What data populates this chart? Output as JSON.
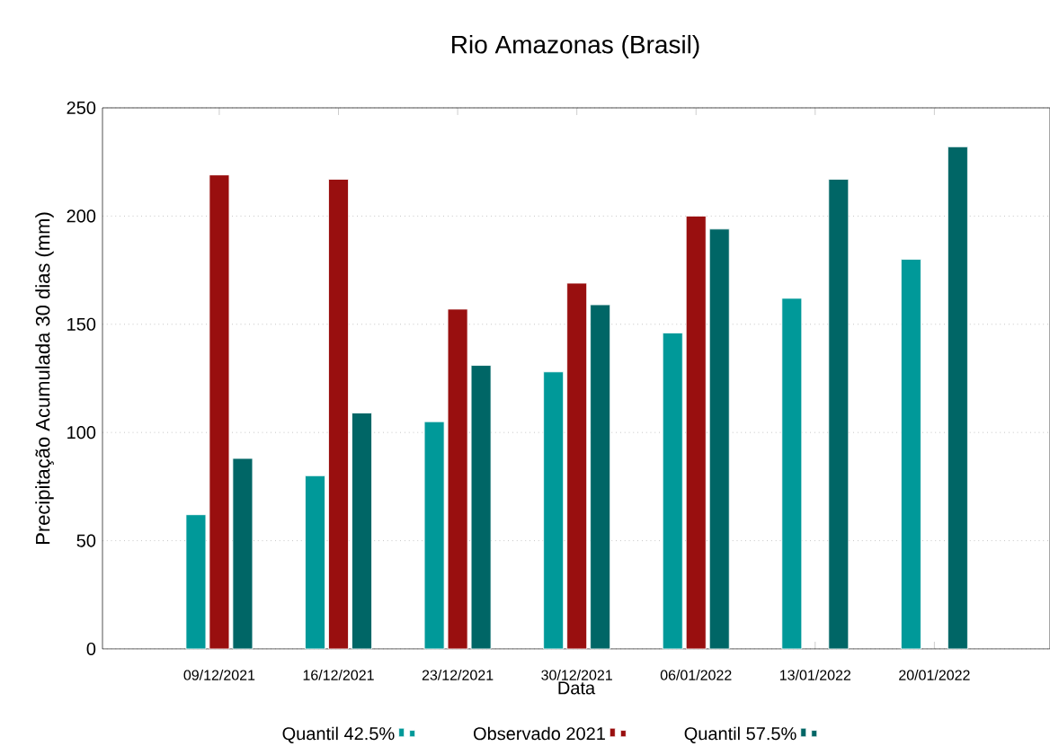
{
  "chart_data": {
    "type": "bar",
    "title": "Rio Amazonas (Brasil)",
    "xlabel": "Data",
    "ylabel": "Precipitação Acumulada 30 dias (mm)",
    "categories": [
      "09/12/2021",
      "16/12/2021",
      "23/12/2021",
      "30/12/2021",
      "06/01/2022",
      "13/01/2022",
      "20/01/2022"
    ],
    "series": [
      {
        "name": "Quantil 42.5%",
        "color": "#009999",
        "values": [
          62,
          80,
          105,
          128,
          146,
          162,
          180
        ]
      },
      {
        "name": "Observado 2021",
        "color": "#990f0f",
        "values": [
          219,
          217,
          157,
          169,
          200,
          null,
          null
        ]
      },
      {
        "name": "Quantil 57.5%",
        "color": "#006666",
        "values": [
          88,
          109,
          131,
          159,
          194,
          217,
          232
        ]
      }
    ],
    "ylim": [
      0,
      250
    ],
    "yticks": [
      0,
      50,
      100,
      150,
      200,
      250
    ],
    "grid": "y",
    "legend": "bottom"
  }
}
